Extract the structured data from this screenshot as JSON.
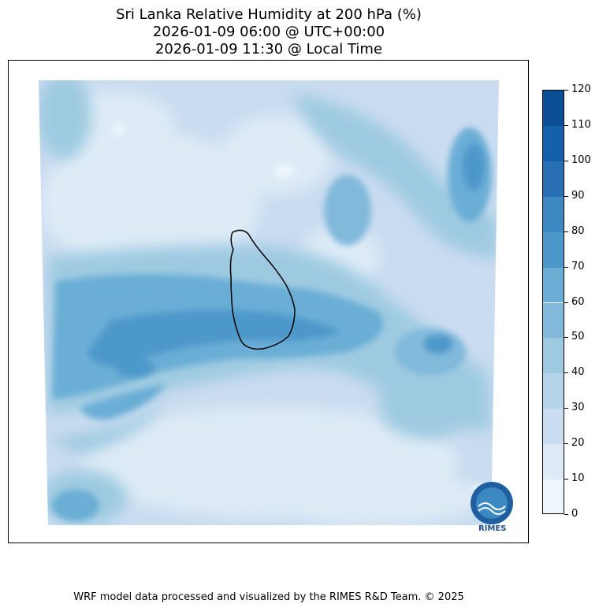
{
  "title": {
    "line1": "Sri Lanka Relative Humidity at 200 hPa (%)",
    "line2": "2026-01-09 06:00 @ UTC+00:00",
    "line3": "2026-01-09 11:30 @ Local Time"
  },
  "colorbar": {
    "levels": [
      0,
      10,
      20,
      30,
      40,
      50,
      60,
      70,
      80,
      90,
      100,
      110,
      120
    ],
    "labels": [
      "0",
      "10",
      "20",
      "30",
      "40",
      "50",
      "60",
      "70",
      "80",
      "90",
      "100",
      "110",
      "120"
    ],
    "colors": [
      "#f0f6fd",
      "#deebf7",
      "#cadcf0",
      "#b6d4e9",
      "#9ecae1",
      "#81b9db",
      "#6aaed6",
      "#4d98cb",
      "#3c88c0",
      "#2870b3",
      "#1561a9",
      "#0a4f95"
    ]
  },
  "logo": {
    "text": "RIMES"
  },
  "footer": "WRF model data processed and visualized by the RIMES R&D Team. © 2025"
}
